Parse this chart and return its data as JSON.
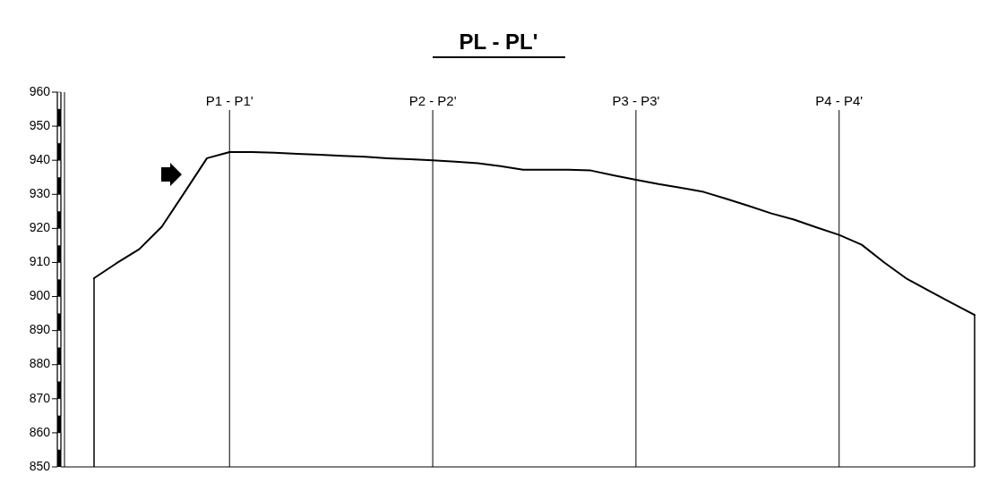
{
  "chart_data": {
    "type": "line",
    "title": "PL - PL'",
    "categories": [
      null,
      null,
      null,
      null,
      null,
      null,
      "P1 - P1'",
      null,
      null,
      null,
      null,
      null,
      null,
      null,
      null,
      "P2 - P2'",
      null,
      null,
      null,
      null,
      null,
      null,
      null,
      null,
      "P3 - P3'",
      null,
      null,
      null,
      null,
      null,
      null,
      null,
      null,
      "P4 - P4'",
      null,
      null,
      null,
      null,
      null,
      null
    ],
    "series": [
      {
        "color": "#000000",
        "values": [
          905.4,
          909.8,
          913.9,
          920.5,
          930.5,
          940.6,
          942.4,
          942.4,
          942.2,
          941.9,
          941.6,
          941.3,
          941.0,
          940.6,
          940.3,
          940,
          939.6,
          939.1,
          938.3,
          937.2,
          937.2,
          937.2,
          937.0,
          935.6,
          934.3,
          933.0,
          931.9,
          930.7,
          928.7,
          926.6,
          924.4,
          922.6,
          920.3,
          918.1,
          915.2,
          910.0,
          905.2,
          901.6,
          898.1,
          894.6
        ]
      }
    ],
    "ylim": [
      850,
      960
    ],
    "yticks": [
      850,
      860,
      870,
      880,
      890,
      900,
      910,
      920,
      930,
      940,
      950,
      960
    ],
    "grid": false,
    "marker": "none",
    "line_style": "solid",
    "ref_lines": [
      {
        "axis": "x",
        "value": "P1 - P1'",
        "color": "#000000"
      },
      {
        "axis": "x",
        "value": "P2 - P2'",
        "color": "#000000"
      },
      {
        "axis": "x",
        "value": "P3 - P3'",
        "color": "#000000"
      },
      {
        "axis": "x",
        "value": "P4 - P4'",
        "color": "#000000"
      }
    ]
  }
}
